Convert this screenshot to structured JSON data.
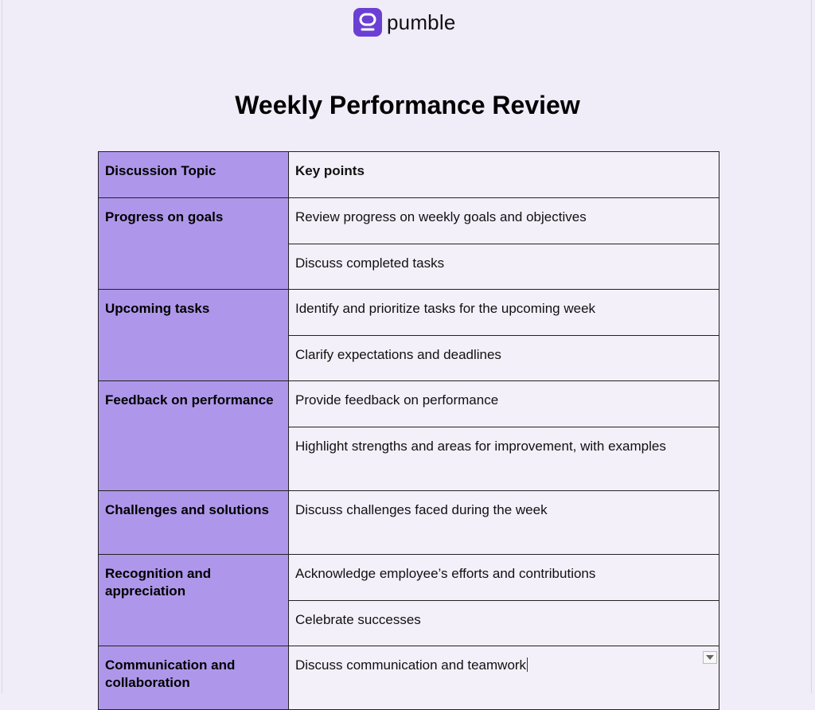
{
  "brand": {
    "name": "pumble",
    "accent": "#6b3fd4"
  },
  "document": {
    "title": "Weekly Performance Review"
  },
  "table": {
    "header": {
      "topic": "Discussion Topic",
      "points": "Key points"
    },
    "rows": [
      {
        "topic": "Progress on goals",
        "points": [
          "Review progress on weekly goals and objectives",
          "Discuss completed tasks"
        ]
      },
      {
        "topic": "Upcoming tasks",
        "points": [
          "Identify and prioritize tasks for the upcoming week",
          "Clarify expectations and deadlines"
        ]
      },
      {
        "topic": "Feedback on performance",
        "points": [
          "Provide feedback on performance",
          "Highlight strengths and areas for improvement, with examples"
        ]
      },
      {
        "topic": "Challenges and solutions",
        "points": [
          "Discuss challenges faced during the week"
        ]
      },
      {
        "topic": "Recognition and appreciation",
        "points": [
          "Acknowledge employee’s efforts and contributions",
          "Celebrate successes"
        ]
      },
      {
        "topic": "Communication and collaboration",
        "points": [
          "Discuss communication and teamwork"
        ]
      }
    ],
    "topic_color": "#ae97ea",
    "cell_color": "#f3f0fa"
  },
  "icons": {
    "logo": "pumble-logo-icon",
    "dropdown": "chevron-down-icon"
  }
}
